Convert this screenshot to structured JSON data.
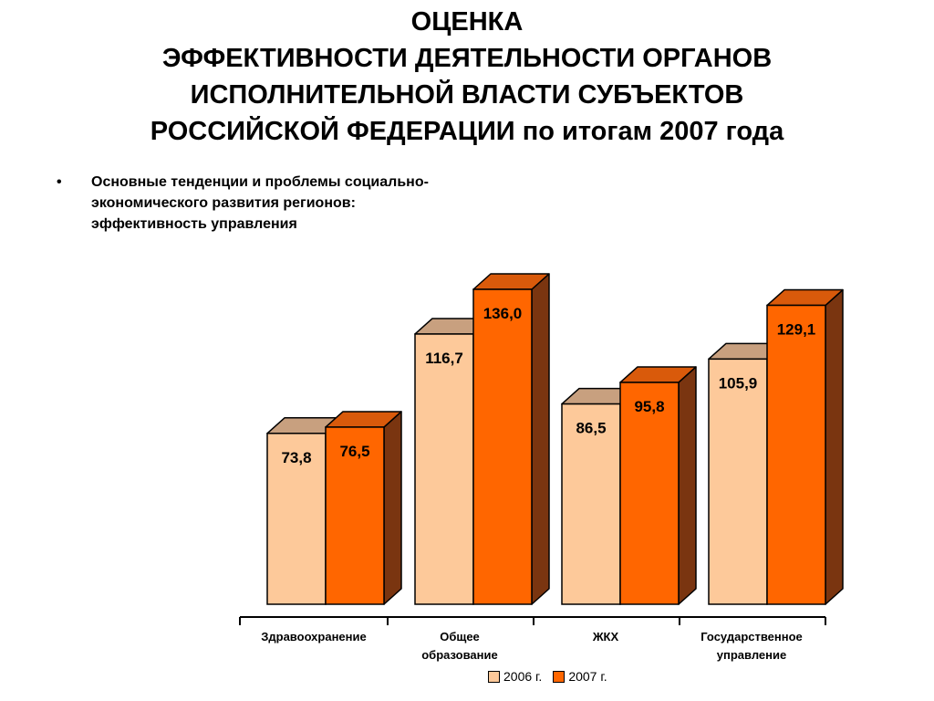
{
  "title": {
    "line1": "ОЦЕНКА",
    "line2": "ЭФФЕКТИВНОСТИ ДЕЯТЕЛЬНОСТИ ОРГАНОВ",
    "line3": "ИСПОЛНИТЕЛЬНОЙ ВЛАСТИ СУБЪЕКТОВ",
    "line4_main": "РОССИЙСКОЙ ФЕДЕРАЦИИ",
    "line4_suffix": "по итогам 2007 года"
  },
  "bullet": {
    "marker": "•",
    "text": "Основные тенденции и проблемы социально-экономического развития регионов: эффективность управления"
  },
  "colors": {
    "series_2006_front": "#FDC99A",
    "series_2006_top": "#C8A07F",
    "series_2007_front": "#FF6600",
    "series_2007_top": "#D95A0B",
    "bar_side": "#7A3510"
  },
  "chart_data": {
    "type": "bar",
    "title": "",
    "xlabel": "",
    "ylabel": "",
    "categories": [
      [
        "Здравоохранение"
      ],
      [
        "Общее",
        "образование"
      ],
      [
        "ЖКХ"
      ],
      [
        "Государственное",
        "управление"
      ]
    ],
    "series": [
      {
        "name": "2006 г.",
        "values": [
          73.8,
          116.7,
          86.5,
          105.9
        ],
        "labels": [
          "73,8",
          "116,7",
          "86,5",
          "105,9"
        ]
      },
      {
        "name": "2007 г.",
        "values": [
          76.5,
          136.0,
          95.8,
          129.1
        ],
        "labels": [
          "76,5",
          "136,0",
          "95,8",
          "129,1"
        ]
      }
    ],
    "ylim": [
      0,
      136.0
    ],
    "grid": false,
    "legend_position": "bottom"
  }
}
